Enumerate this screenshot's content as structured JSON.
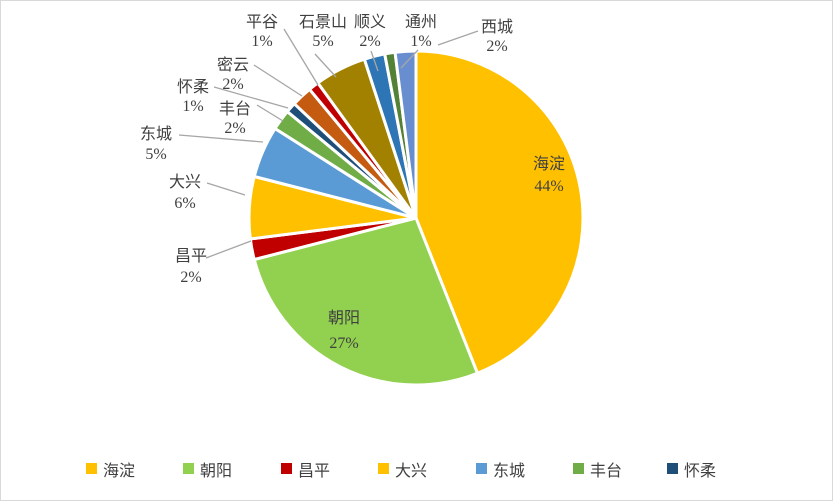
{
  "chart_data": {
    "type": "pie",
    "title": "",
    "unit": "%",
    "start_angle_deg": 0,
    "direction": "clockwise",
    "label_format": "name + percent, outside with leader lines for small slices",
    "slices": [
      {
        "name": "海淀",
        "value": 44,
        "color": "#FFC000",
        "label_placement": "inside"
      },
      {
        "name": "朝阳",
        "value": 27,
        "color": "#92D050",
        "label_placement": "inside"
      },
      {
        "name": "昌平",
        "value": 2,
        "color": "#C00000",
        "label_placement": "outside"
      },
      {
        "name": "大兴",
        "value": 6,
        "color": "#FFC000",
        "label_placement": "outside"
      },
      {
        "name": "东城",
        "value": 5,
        "color": "#5B9BD5",
        "label_placement": "outside"
      },
      {
        "name": "丰台",
        "value": 2,
        "color": "#70AD47",
        "label_placement": "outside"
      },
      {
        "name": "怀柔",
        "value": 1,
        "color": "#1F4E79",
        "label_placement": "outside"
      },
      {
        "name": "密云",
        "value": 2,
        "color": "#C55A11",
        "label_placement": "outside"
      },
      {
        "name": "平谷",
        "value": 1,
        "color": "#C00000",
        "label_placement": "outside"
      },
      {
        "name": "石景山",
        "value": 5,
        "color": "#A28000",
        "label_placement": "outside"
      },
      {
        "name": "顺义",
        "value": 2,
        "color": "#2E75B6",
        "label_placement": "outside"
      },
      {
        "name": "通州",
        "value": 1,
        "color": "#538135",
        "label_placement": "outside"
      },
      {
        "name": "西城",
        "value": 2,
        "color": "#698ED0",
        "label_placement": "outside"
      }
    ],
    "legend": {
      "position": "bottom",
      "visible_items": [
        "海淀",
        "朝阳",
        "昌平",
        "大兴",
        "东城",
        "丰台",
        "怀柔"
      ]
    },
    "colors": {
      "label_text": "#404040",
      "legend_text": "#404040",
      "leader_line": "#A6A6A6",
      "slice_border": "#FFFFFF",
      "background": "#FFFFFF",
      "frame_border": "#D9D9D9"
    }
  }
}
